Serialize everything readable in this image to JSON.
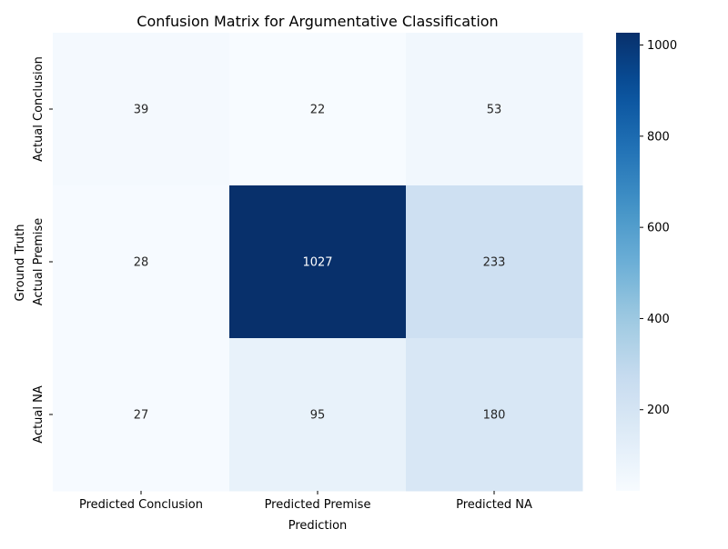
{
  "chart_data": {
    "type": "heatmap",
    "title": "Confusion Matrix for Argumentative Classification",
    "xlabel": "Prediction",
    "ylabel": "Ground Truth",
    "x_categories": [
      "Predicted Conclusion",
      "Predicted Premise",
      "Predicted NA"
    ],
    "y_categories": [
      "Actual Conclusion",
      "Actual Premise",
      "Actual NA"
    ],
    "values": [
      [
        39,
        22,
        53
      ],
      [
        28,
        1027,
        233
      ],
      [
        27,
        95,
        180
      ]
    ],
    "colorbar": {
      "colormap": "Blues",
      "range": [
        22,
        1027
      ],
      "ticks": [
        200,
        400,
        600,
        800,
        1000
      ],
      "tick_labels": [
        "200",
        "400",
        "600",
        "800",
        "1000"
      ]
    },
    "annotation_colors": {
      "light": "#ffffff",
      "dark": "#262626"
    }
  }
}
